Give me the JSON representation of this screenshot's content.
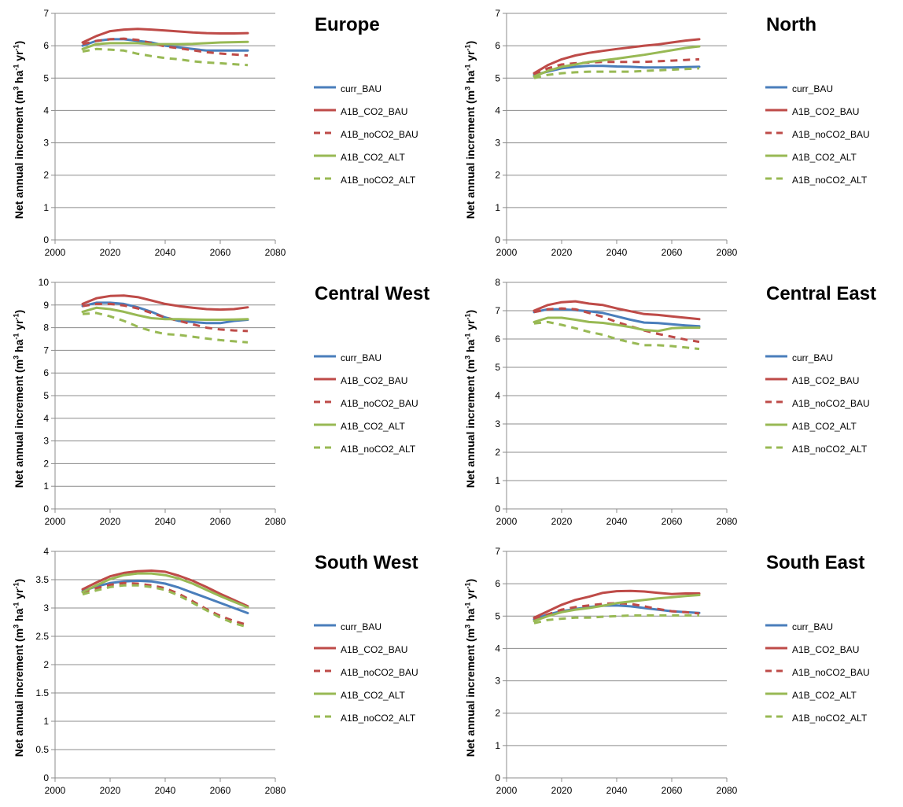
{
  "colors": {
    "curr_BAU": "#4a7ebb",
    "A1B_CO2": "#be4b48",
    "ALT": "#98b954"
  },
  "chart_data": [
    {
      "type": "line",
      "title": "Europe",
      "ylabel": {
        "main": "Net annual increment (m",
        "sup1": "3",
        "mid1": " ha",
        "sup2": "-1",
        "mid2": " yr",
        "sup3": "-1",
        "end": ")"
      },
      "xlim": [
        2000,
        2080
      ],
      "ylim": [
        0,
        7
      ],
      "xticks": [
        "2000",
        "2020",
        "2040",
        "2060",
        "2080"
      ],
      "yticks": [
        "0",
        "1",
        "2",
        "3",
        "4",
        "5",
        "6",
        "7"
      ],
      "grid": "horizontal",
      "legend": "right",
      "x": [
        2010,
        2015,
        2020,
        2025,
        2030,
        2035,
        2040,
        2045,
        2050,
        2055,
        2060,
        2065,
        2070
      ],
      "series": [
        {
          "name": "curr_BAU",
          "style": "solid",
          "color": "#4a7ebb",
          "values": [
            6.0,
            6.15,
            6.2,
            6.2,
            6.15,
            6.1,
            6.0,
            5.95,
            5.9,
            5.85,
            5.85,
            5.85,
            5.85
          ]
        },
        {
          "name": "A1B_CO2_BAU",
          "style": "solid",
          "color": "#be4b48",
          "values": [
            6.1,
            6.3,
            6.45,
            6.5,
            6.52,
            6.5,
            6.47,
            6.44,
            6.41,
            6.39,
            6.38,
            6.38,
            6.39
          ]
        },
        {
          "name": "A1B_noCO2_BAU",
          "style": "dashed",
          "color": "#be4b48",
          "values": [
            6.05,
            6.15,
            6.2,
            6.22,
            6.18,
            6.08,
            5.98,
            5.92,
            5.86,
            5.8,
            5.76,
            5.73,
            5.7
          ]
        },
        {
          "name": "A1B_CO2_ALT",
          "style": "solid",
          "color": "#98b954",
          "values": [
            5.9,
            6.05,
            6.08,
            6.08,
            6.08,
            6.05,
            6.05,
            6.05,
            6.06,
            6.08,
            6.1,
            6.11,
            6.12
          ]
        },
        {
          "name": "A1B_noCO2_ALT",
          "style": "dashed",
          "color": "#98b954",
          "values": [
            5.82,
            5.9,
            5.88,
            5.85,
            5.75,
            5.68,
            5.62,
            5.58,
            5.52,
            5.48,
            5.46,
            5.43,
            5.4
          ]
        }
      ]
    },
    {
      "type": "line",
      "title": "North",
      "ylabel": {
        "main": "Net annual increment (m",
        "sup1": "3",
        "mid1": " ha",
        "sup2": "-1",
        "mid2": " yr",
        "sup3": "-1",
        "end": ")"
      },
      "xlim": [
        2000,
        2080
      ],
      "ylim": [
        0,
        7
      ],
      "xticks": [
        "2000",
        "2020",
        "2040",
        "2060",
        "2080"
      ],
      "yticks": [
        "0",
        "1",
        "2",
        "3",
        "4",
        "5",
        "6",
        "7"
      ],
      "grid": "horizontal",
      "legend": "right",
      "x": [
        2010,
        2015,
        2020,
        2025,
        2030,
        2035,
        2040,
        2045,
        2050,
        2055,
        2060,
        2065,
        2070
      ],
      "series": [
        {
          "name": "curr_BAU",
          "style": "solid",
          "color": "#4a7ebb",
          "values": [
            5.1,
            5.2,
            5.3,
            5.35,
            5.38,
            5.38,
            5.36,
            5.35,
            5.33,
            5.33,
            5.33,
            5.34,
            5.35
          ]
        },
        {
          "name": "A1B_CO2_BAU",
          "style": "solid",
          "color": "#be4b48",
          "values": [
            5.15,
            5.4,
            5.58,
            5.7,
            5.78,
            5.84,
            5.9,
            5.95,
            6.0,
            6.04,
            6.1,
            6.16,
            6.2
          ]
        },
        {
          "name": "A1B_noCO2_BAU",
          "style": "dashed",
          "color": "#be4b48",
          "values": [
            5.1,
            5.3,
            5.42,
            5.46,
            5.48,
            5.5,
            5.5,
            5.5,
            5.5,
            5.52,
            5.54,
            5.56,
            5.58
          ]
        },
        {
          "name": "A1B_CO2_ALT",
          "style": "solid",
          "color": "#98b954",
          "values": [
            5.05,
            5.22,
            5.35,
            5.42,
            5.5,
            5.55,
            5.6,
            5.66,
            5.72,
            5.79,
            5.86,
            5.93,
            5.98
          ]
        },
        {
          "name": "A1B_noCO2_ALT",
          "style": "dashed",
          "color": "#98b954",
          "values": [
            5.0,
            5.1,
            5.15,
            5.18,
            5.2,
            5.2,
            5.2,
            5.2,
            5.22,
            5.24,
            5.26,
            5.28,
            5.3
          ]
        }
      ]
    },
    {
      "type": "line",
      "title": "Central West",
      "ylabel": {
        "main": "Net annual increment (m",
        "sup1": "3",
        "mid1": " ha",
        "sup2": "-1",
        "mid2": " yr",
        "sup3": "-1",
        "end": ")"
      },
      "xlim": [
        2000,
        2080
      ],
      "ylim": [
        0,
        10
      ],
      "xticks": [
        "2000",
        "2020",
        "2040",
        "2060",
        "2080"
      ],
      "yticks": [
        "0",
        "1",
        "2",
        "3",
        "4",
        "5",
        "6",
        "7",
        "8",
        "9",
        "10"
      ],
      "grid": "horizontal",
      "legend": "right",
      "x": [
        2010,
        2015,
        2020,
        2025,
        2030,
        2035,
        2040,
        2045,
        2050,
        2055,
        2060,
        2065,
        2070
      ],
      "series": [
        {
          "name": "curr_BAU",
          "style": "solid",
          "color": "#4a7ebb",
          "values": [
            8.95,
            9.1,
            9.1,
            9.05,
            8.9,
            8.7,
            8.45,
            8.3,
            8.25,
            8.2,
            8.2,
            8.3,
            8.35
          ]
        },
        {
          "name": "A1B_CO2_BAU",
          "style": "solid",
          "color": "#be4b48",
          "values": [
            9.05,
            9.3,
            9.4,
            9.42,
            9.35,
            9.2,
            9.05,
            8.95,
            8.88,
            8.82,
            8.8,
            8.82,
            8.9
          ]
        },
        {
          "name": "A1B_noCO2_BAU",
          "style": "dashed",
          "color": "#be4b48",
          "values": [
            8.95,
            9.05,
            9.05,
            8.98,
            8.85,
            8.65,
            8.45,
            8.3,
            8.15,
            8.0,
            7.92,
            7.88,
            7.85
          ]
        },
        {
          "name": "A1B_CO2_ALT",
          "style": "solid",
          "color": "#98b954",
          "values": [
            8.7,
            8.88,
            8.82,
            8.7,
            8.55,
            8.42,
            8.38,
            8.38,
            8.36,
            8.35,
            8.35,
            8.36,
            8.38
          ]
        },
        {
          "name": "A1B_noCO2_ALT",
          "style": "dashed",
          "color": "#98b954",
          "values": [
            8.6,
            8.65,
            8.5,
            8.3,
            8.05,
            7.85,
            7.72,
            7.68,
            7.6,
            7.52,
            7.45,
            7.4,
            7.35
          ]
        }
      ]
    },
    {
      "type": "line",
      "title": "Central East",
      "ylabel": {
        "main": "Net annual increment (m",
        "sup1": "3",
        "mid1": " ha",
        "sup2": "-1",
        "mid2": " yr",
        "sup3": "-1",
        "end": ")"
      },
      "xlim": [
        2000,
        2080
      ],
      "ylim": [
        0,
        8
      ],
      "xticks": [
        "2000",
        "2020",
        "2040",
        "2060",
        "2080"
      ],
      "yticks": [
        "0",
        "1",
        "2",
        "3",
        "4",
        "5",
        "6",
        "7",
        "8"
      ],
      "grid": "horizontal",
      "legend": "right",
      "x": [
        2010,
        2015,
        2020,
        2025,
        2030,
        2035,
        2040,
        2045,
        2050,
        2055,
        2060,
        2065,
        2070
      ],
      "series": [
        {
          "name": "curr_BAU",
          "style": "solid",
          "color": "#4a7ebb",
          "values": [
            6.95,
            7.05,
            7.05,
            7.02,
            6.98,
            6.92,
            6.8,
            6.68,
            6.58,
            6.56,
            6.52,
            6.48,
            6.45
          ]
        },
        {
          "name": "A1B_CO2_BAU",
          "style": "solid",
          "color": "#be4b48",
          "values": [
            7.0,
            7.2,
            7.3,
            7.33,
            7.25,
            7.2,
            7.08,
            6.98,
            6.88,
            6.85,
            6.8,
            6.75,
            6.7
          ]
        },
        {
          "name": "A1B_noCO2_BAU",
          "style": "dashed",
          "color": "#be4b48",
          "values": [
            6.95,
            7.05,
            7.08,
            7.05,
            6.92,
            6.78,
            6.6,
            6.45,
            6.3,
            6.18,
            6.08,
            5.98,
            5.9
          ]
        },
        {
          "name": "A1B_CO2_ALT",
          "style": "solid",
          "color": "#98b954",
          "values": [
            6.6,
            6.75,
            6.75,
            6.68,
            6.6,
            6.57,
            6.5,
            6.42,
            6.32,
            6.28,
            6.38,
            6.4,
            6.4
          ]
        },
        {
          "name": "A1B_noCO2_ALT",
          "style": "dashed",
          "color": "#98b954",
          "values": [
            6.55,
            6.6,
            6.5,
            6.38,
            6.25,
            6.15,
            6.0,
            5.88,
            5.78,
            5.78,
            5.75,
            5.7,
            5.65
          ]
        }
      ]
    },
    {
      "type": "line",
      "title": "South West",
      "ylabel": {
        "main": "Net annual increment (m",
        "sup1": "3",
        "mid1": " ha",
        "sup2": "-1",
        "mid2": " yr",
        "sup3": "-1",
        "end": ")"
      },
      "xlim": [
        2000,
        2080
      ],
      "ylim": [
        0,
        4
      ],
      "xticks": [
        "2000",
        "2020",
        "2040",
        "2060",
        "2080"
      ],
      "yticks": [
        "0",
        "0.5",
        "1",
        "1.5",
        "2",
        "2.5",
        "3",
        "3.5",
        "4"
      ],
      "grid": "horizontal",
      "legend": "right",
      "x": [
        2010,
        2015,
        2020,
        2025,
        2030,
        2035,
        2040,
        2045,
        2050,
        2055,
        2060,
        2065,
        2070
      ],
      "series": [
        {
          "name": "curr_BAU",
          "style": "solid",
          "color": "#4a7ebb",
          "values": [
            3.3,
            3.38,
            3.44,
            3.47,
            3.48,
            3.47,
            3.43,
            3.36,
            3.27,
            3.18,
            3.09,
            3.0,
            2.91
          ]
        },
        {
          "name": "A1B_CO2_BAU",
          "style": "solid",
          "color": "#be4b48",
          "values": [
            3.33,
            3.45,
            3.56,
            3.62,
            3.65,
            3.66,
            3.64,
            3.57,
            3.48,
            3.37,
            3.25,
            3.14,
            3.03
          ]
        },
        {
          "name": "A1B_noCO2_BAU",
          "style": "dashed",
          "color": "#be4b48",
          "values": [
            3.28,
            3.35,
            3.41,
            3.44,
            3.43,
            3.4,
            3.35,
            3.25,
            3.12,
            2.98,
            2.86,
            2.77,
            2.7
          ]
        },
        {
          "name": "A1B_CO2_ALT",
          "style": "solid",
          "color": "#98b954",
          "values": [
            3.28,
            3.4,
            3.51,
            3.58,
            3.61,
            3.61,
            3.58,
            3.52,
            3.43,
            3.32,
            3.21,
            3.11,
            3.01
          ]
        },
        {
          "name": "A1B_noCO2_ALT",
          "style": "dashed",
          "color": "#98b954",
          "values": [
            3.24,
            3.31,
            3.37,
            3.4,
            3.4,
            3.37,
            3.32,
            3.22,
            3.09,
            2.96,
            2.83,
            2.73,
            2.66
          ]
        }
      ]
    },
    {
      "type": "line",
      "title": "South East",
      "ylabel": {
        "main": "Net annual increment (m",
        "sup1": "3",
        "mid1": " ha",
        "sup2": "-1",
        "mid2": " yr",
        "sup3": "-1",
        "end": ")"
      },
      "xlim": [
        2000,
        2080
      ],
      "ylim": [
        0,
        7
      ],
      "xticks": [
        "2000",
        "2020",
        "2040",
        "2060",
        "2080"
      ],
      "yticks": [
        "0",
        "1",
        "2",
        "3",
        "4",
        "5",
        "6",
        "7"
      ],
      "grid": "horizontal",
      "legend": "right",
      "x": [
        2010,
        2015,
        2020,
        2025,
        2030,
        2035,
        2040,
        2045,
        2050,
        2055,
        2060,
        2065,
        2070
      ],
      "series": [
        {
          "name": "curr_BAU",
          "style": "solid",
          "color": "#4a7ebb",
          "values": [
            4.9,
            5.05,
            5.15,
            5.22,
            5.28,
            5.32,
            5.33,
            5.3,
            5.25,
            5.2,
            5.15,
            5.12,
            5.1
          ]
        },
        {
          "name": "A1B_CO2_BAU",
          "style": "solid",
          "color": "#be4b48",
          "values": [
            4.95,
            5.15,
            5.35,
            5.5,
            5.6,
            5.72,
            5.77,
            5.78,
            5.76,
            5.72,
            5.68,
            5.7,
            5.7
          ]
        },
        {
          "name": "A1B_noCO2_BAU",
          "style": "dashed",
          "color": "#be4b48",
          "values": [
            4.88,
            5.05,
            5.2,
            5.28,
            5.33,
            5.38,
            5.4,
            5.38,
            5.3,
            5.22,
            5.15,
            5.12,
            5.08
          ]
        },
        {
          "name": "A1B_CO2_ALT",
          "style": "solid",
          "color": "#98b954",
          "values": [
            4.85,
            5.0,
            5.12,
            5.2,
            5.25,
            5.32,
            5.4,
            5.45,
            5.5,
            5.55,
            5.58,
            5.62,
            5.65
          ]
        },
        {
          "name": "A1B_noCO2_ALT",
          "style": "dashed",
          "color": "#98b954",
          "values": [
            4.78,
            4.88,
            4.92,
            4.95,
            4.95,
            4.98,
            5.0,
            5.02,
            5.02,
            5.02,
            5.02,
            5.02,
            5.02
          ]
        }
      ]
    }
  ]
}
